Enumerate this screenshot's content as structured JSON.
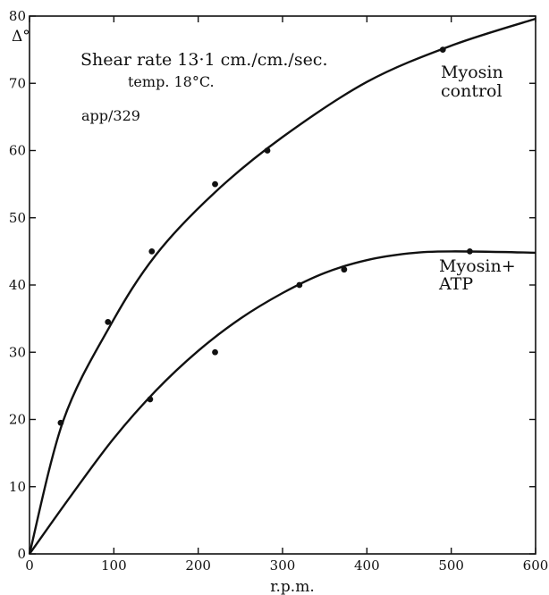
{
  "chart_data": {
    "type": "scatter",
    "title": "",
    "xlabel": "r.p.m.",
    "ylabel": "Δ°",
    "xlim": [
      0,
      600
    ],
    "ylim": [
      0,
      80
    ],
    "x_ticks": [
      0,
      100,
      200,
      300,
      400,
      500,
      600
    ],
    "y_ticks": [
      0,
      10,
      20,
      30,
      40,
      50,
      60,
      70,
      80
    ],
    "grid": false,
    "legend": "none",
    "annotations": [
      {
        "text": "Shear rate 13·1 cm./cm./sec."
      },
      {
        "text": "temp. 18°C."
      },
      {
        "text": "app/329"
      }
    ],
    "series": [
      {
        "name": "Myosin control",
        "label_lines": [
          "Myosin",
          "control"
        ],
        "points": [
          [
            37,
            19.5
          ],
          [
            93,
            34.5
          ],
          [
            145,
            45
          ],
          [
            220,
            55
          ],
          [
            282,
            60
          ],
          [
            490,
            75
          ]
        ],
        "curve": [
          [
            0,
            0
          ],
          [
            40,
            19.8
          ],
          [
            95,
            33.8
          ],
          [
            150,
            44.5
          ],
          [
            220,
            53.8
          ],
          [
            300,
            62
          ],
          [
            400,
            70.2
          ],
          [
            500,
            75.6
          ],
          [
            600,
            79.6
          ]
        ]
      },
      {
        "name": "Myosin+ ATP",
        "label_lines": [
          "Myosin+",
          "ATP"
        ],
        "points": [
          [
            143,
            23
          ],
          [
            220,
            30
          ],
          [
            320,
            40
          ],
          [
            373,
            42.3
          ],
          [
            522,
            45
          ]
        ],
        "curve": [
          [
            0,
            0
          ],
          [
            50,
            8.8
          ],
          [
            100,
            17.2
          ],
          [
            150,
            24.3
          ],
          [
            200,
            30.2
          ],
          [
            250,
            35
          ],
          [
            300,
            38.8
          ],
          [
            350,
            41.8
          ],
          [
            400,
            43.7
          ],
          [
            450,
            44.7
          ],
          [
            500,
            45
          ],
          [
            600,
            44.8
          ]
        ]
      }
    ]
  }
}
